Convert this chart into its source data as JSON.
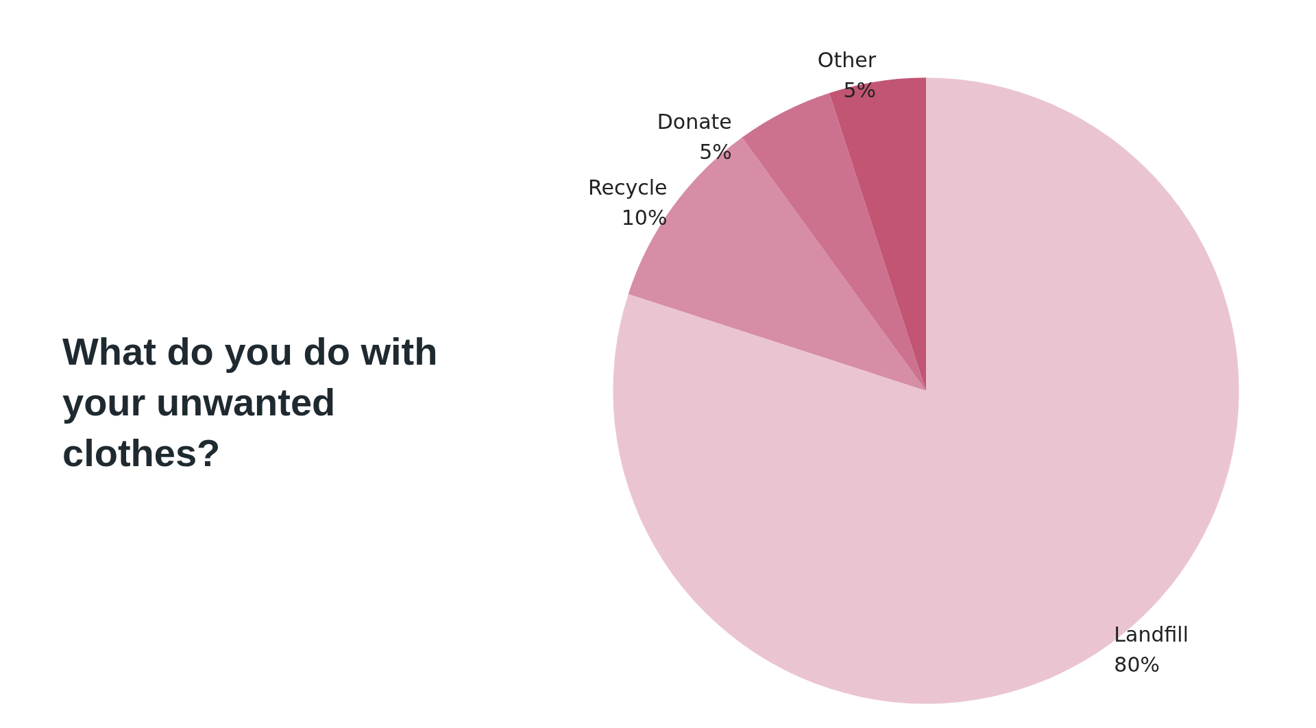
{
  "chart_data": {
    "type": "pie",
    "title": "What do you do with your unwanted clothes?",
    "categories": [
      "Landfill",
      "Recycle",
      "Donate",
      "Other"
    ],
    "values": [
      80,
      10,
      5,
      5
    ],
    "colors": [
      "#eac5d1",
      "#d68da5",
      "#cc728f",
      "#c25574"
    ],
    "value_labels": [
      "80%",
      "10%",
      "5%",
      "5%"
    ]
  }
}
